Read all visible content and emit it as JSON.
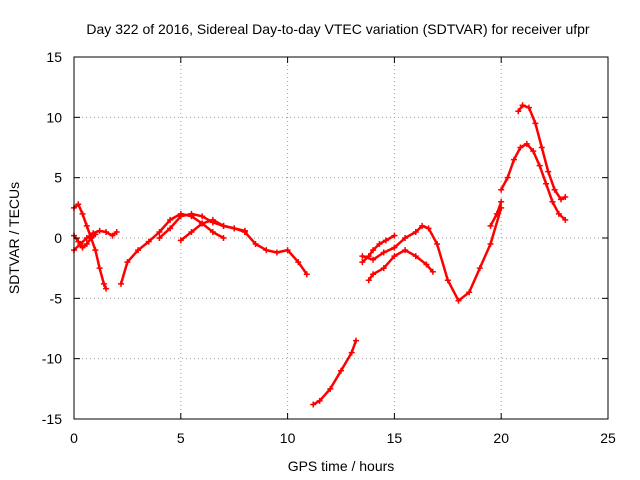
{
  "chart_data": {
    "type": "line",
    "title": "Day 322 of 2016, Sidereal Day-to-day VTEC variation (SDTVAR) for receiver ufpr",
    "xlabel": "GPS time / hours",
    "ylabel": "SDTVAR / TECUs",
    "xlim": [
      0,
      25
    ],
    "ylim": [
      -15,
      15
    ],
    "xticks": [
      "0",
      "5",
      "10",
      "15",
      "20",
      "25"
    ],
    "yticks": [
      "15",
      "10",
      "5",
      "0",
      "-5",
      "-10",
      "-15"
    ],
    "grid": true,
    "marker": "+",
    "color": "#ff0000",
    "series": [
      {
        "name": "arc-1",
        "x": [
          0.0,
          0.2,
          0.4,
          0.6,
          0.8,
          1.0,
          1.2,
          1.4,
          1.5
        ],
        "y": [
          2.5,
          2.8,
          2.0,
          1.0,
          0.0,
          -1.0,
          -2.5,
          -3.8,
          -4.2
        ]
      },
      {
        "name": "arc-2",
        "x": [
          0.0,
          0.2,
          0.4,
          0.6,
          0.8,
          1.0
        ],
        "y": [
          0.2,
          -0.3,
          -0.8,
          -0.5,
          0.0,
          0.3
        ]
      },
      {
        "name": "arc-3",
        "x": [
          0.0,
          0.3,
          0.6,
          0.9,
          1.2,
          1.5,
          1.8,
          2.0
        ],
        "y": [
          -1.0,
          -0.5,
          0.0,
          0.4,
          0.6,
          0.5,
          0.2,
          0.5
        ]
      },
      {
        "name": "arc-4",
        "x": [
          2.2,
          2.5,
          3.0,
          3.5,
          4.0,
          4.5,
          5.0,
          5.5,
          6.0,
          6.5,
          7.0
        ],
        "y": [
          -3.8,
          -2.0,
          -1.0,
          -0.3,
          0.5,
          1.5,
          2.0,
          1.8,
          1.2,
          0.5,
          0.0
        ]
      },
      {
        "name": "arc-5",
        "x": [
          4.0,
          4.5,
          5.0,
          5.5,
          6.0,
          6.5,
          7.0,
          7.5,
          8.0,
          8.5,
          9.0,
          9.5,
          10.0,
          10.5,
          10.9
        ],
        "y": [
          0.0,
          0.8,
          1.8,
          2.0,
          1.8,
          1.3,
          1.0,
          0.8,
          0.5,
          -0.5,
          -1.0,
          -1.2,
          -1.0,
          -2.0,
          -3.0
        ]
      },
      {
        "name": "arc-6",
        "x": [
          5.0,
          5.5,
          6.0,
          6.5,
          7.0,
          7.5,
          8.0
        ],
        "y": [
          -0.2,
          0.5,
          1.2,
          1.5,
          1.0,
          0.8,
          0.6
        ]
      },
      {
        "name": "arc-7",
        "x": [
          11.2,
          11.5,
          12.0,
          12.5,
          13.0,
          13.2
        ],
        "y": [
          -13.8,
          -13.5,
          -12.5,
          -11.0,
          -9.5,
          -8.5
        ]
      },
      {
        "name": "arc-8",
        "x": [
          13.5,
          13.8,
          14.0,
          14.3,
          14.6,
          15.0
        ],
        "y": [
          -2.0,
          -1.5,
          -1.0,
          -0.5,
          -0.2,
          0.2
        ]
      },
      {
        "name": "arc-9",
        "x": [
          13.8,
          14.0,
          14.5,
          15.0,
          15.5,
          16.0,
          16.5,
          16.8
        ],
        "y": [
          -3.5,
          -3.0,
          -2.5,
          -1.5,
          -1.0,
          -1.5,
          -2.2,
          -2.8
        ]
      },
      {
        "name": "arc-10",
        "x": [
          13.5,
          14.0,
          14.5,
          15.0,
          15.5,
          16.0,
          16.3,
          16.6,
          17.0,
          17.5,
          18.0,
          18.5,
          19.0,
          19.5,
          20.0
        ],
        "y": [
          -1.5,
          -1.8,
          -1.2,
          -0.8,
          0.0,
          0.5,
          1.0,
          0.8,
          -0.5,
          -3.5,
          -5.2,
          -4.5,
          -2.5,
          -0.5,
          2.5
        ]
      },
      {
        "name": "arc-11",
        "x": [
          19.5,
          19.8,
          20.0
        ],
        "y": [
          1.0,
          2.0,
          3.0
        ]
      },
      {
        "name": "arc-12",
        "x": [
          20.0,
          20.3,
          20.6,
          20.9,
          21.2,
          21.5,
          21.8,
          22.1,
          22.4,
          22.7,
          23.0
        ],
        "y": [
          4.0,
          5.0,
          6.5,
          7.5,
          7.8,
          7.2,
          6.0,
          4.5,
          3.0,
          2.0,
          1.5
        ]
      },
      {
        "name": "arc-13",
        "x": [
          20.8,
          21.0,
          21.3,
          21.6,
          21.9,
          22.2,
          22.5,
          22.8,
          23.0
        ],
        "y": [
          10.5,
          11.0,
          10.8,
          9.5,
          7.5,
          5.5,
          4.0,
          3.2,
          3.4
        ]
      }
    ]
  }
}
